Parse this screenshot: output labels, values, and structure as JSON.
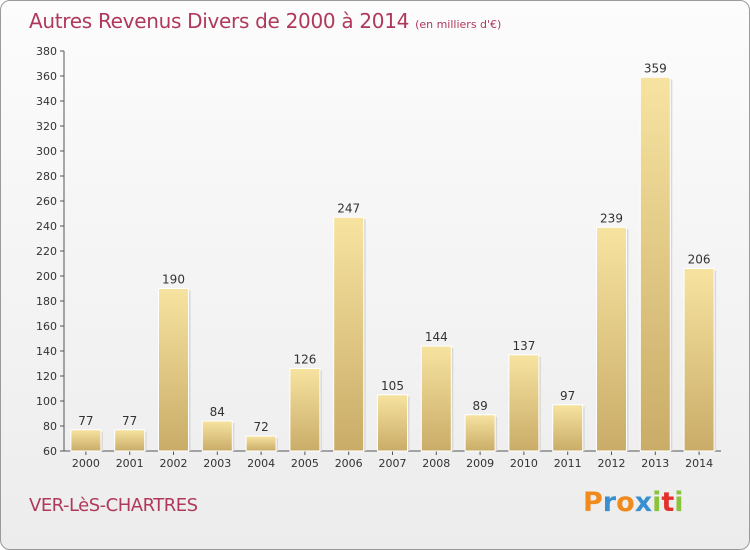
{
  "header": {
    "title": "Autres Revenus Divers de 2000 à 2014",
    "unit": "(en milliers d'€)"
  },
  "footer": {
    "commune": "VER-LèS-CHARTRES",
    "logo_letters": [
      "P",
      "r",
      "o",
      "x",
      "i",
      "t",
      "i"
    ],
    "logo_colors": [
      "#f08a1c",
      "#3a8fd1",
      "#f08a1c",
      "#3a8fd1",
      "#8bc33a",
      "#e2312b",
      "#8bc33a"
    ]
  },
  "chart_data": {
    "type": "bar",
    "title": "Autres Revenus Divers de 2000 à 2014",
    "subtitle": "(en milliers d'€)",
    "xlabel": "",
    "ylabel": "",
    "categories": [
      "2000",
      "2001",
      "2002",
      "2003",
      "2004",
      "2005",
      "2006",
      "2007",
      "2008",
      "2009",
      "2010",
      "2011",
      "2012",
      "2013",
      "2014"
    ],
    "values": [
      77,
      77,
      190,
      84,
      72,
      126,
      247,
      105,
      144,
      89,
      137,
      97,
      239,
      359,
      206
    ],
    "ylim": [
      60,
      380
    ],
    "yticks": [
      60,
      80,
      100,
      120,
      140,
      160,
      180,
      200,
      220,
      240,
      260,
      280,
      300,
      320,
      340,
      360,
      380
    ],
    "grid": false,
    "bar_color_light": "#f7e3a0",
    "bar_color_dark": "#c9ac68"
  }
}
